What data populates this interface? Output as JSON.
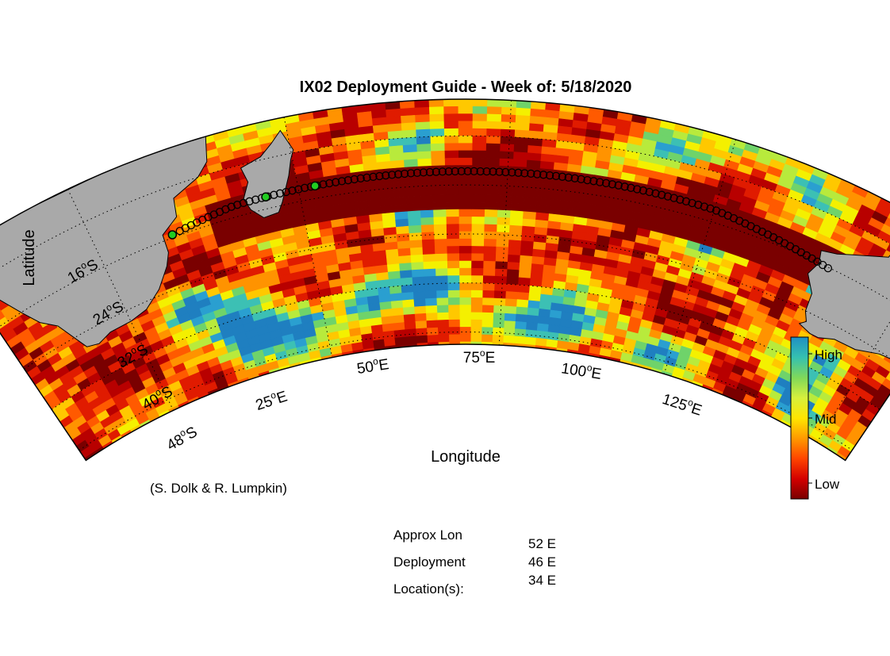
{
  "title": "IX02 Deployment Guide - Week of: 5/18/2020",
  "xlabel": "Longitude",
  "ylabel": "Latitude",
  "credit": "(S. Dolk & R. Lumpkin)",
  "lat_ticks": [
    {
      "deg": "16",
      "hem": "S"
    },
    {
      "deg": "24",
      "hem": "S"
    },
    {
      "deg": "32",
      "hem": "S"
    },
    {
      "deg": "40",
      "hem": "S"
    },
    {
      "deg": "48",
      "hem": "S"
    }
  ],
  "lon_ticks": [
    {
      "deg": "25",
      "hem": "E"
    },
    {
      "deg": "50",
      "hem": "E"
    },
    {
      "deg": "75",
      "hem": "E"
    },
    {
      "deg": "100",
      "hem": "E"
    },
    {
      "deg": "125",
      "hem": "E"
    }
  ],
  "colorbar": {
    "labels": {
      "high": "High",
      "mid": "Mid",
      "low": "Low"
    },
    "colors": [
      "#7a0000",
      "#d40000",
      "#ff4500",
      "#ff9a00",
      "#ffe600",
      "#d7f03c",
      "#7fd85a",
      "#35c1b0",
      "#1f8fc4"
    ]
  },
  "deployment": {
    "label_line1": "Approx Lon",
    "label_line2": "Deployment",
    "label_line3": "Location(s):",
    "values": [
      "52 E",
      "46 E",
      "34 E"
    ]
  },
  "map_colors": {
    "land": "#a9a9a9",
    "ocean_low": "#7a0000",
    "track_marker": "#000000",
    "selected_marker": "#22cc22"
  }
}
